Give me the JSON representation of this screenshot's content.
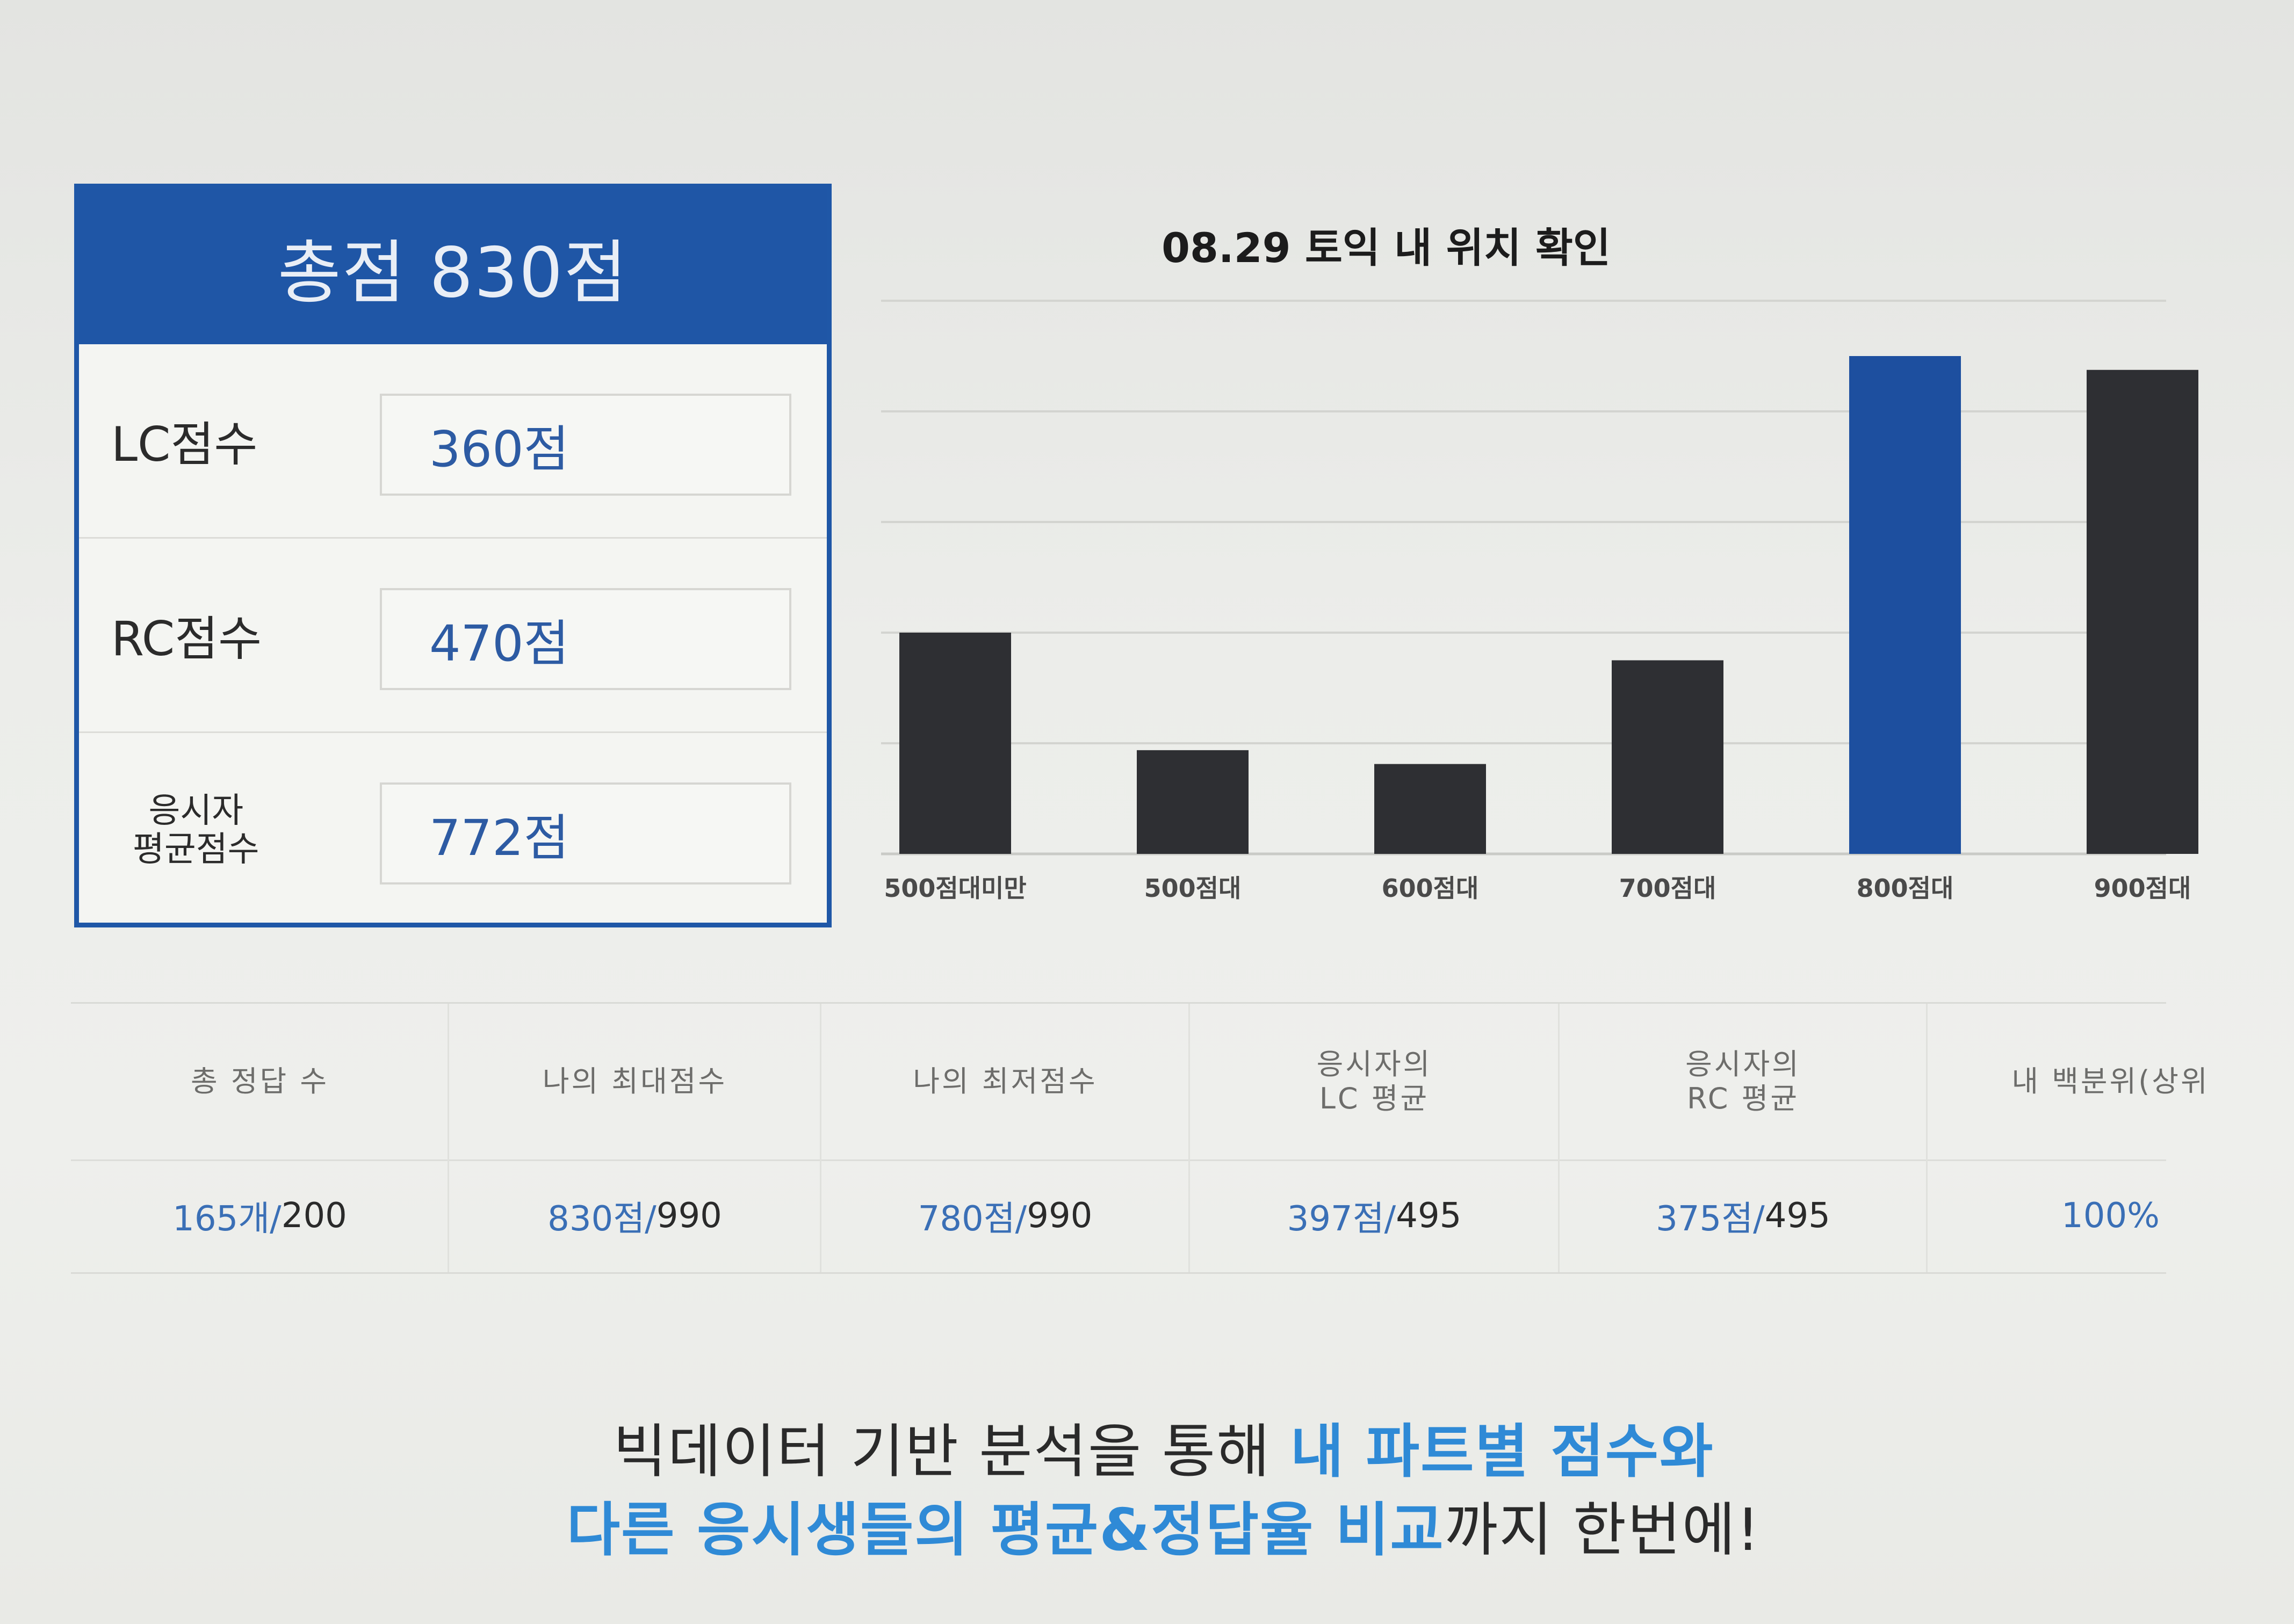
{
  "score_card": {
    "title": "총점 830점",
    "rows": [
      {
        "label": "LC점수",
        "value": "360점"
      },
      {
        "label": "RC점수",
        "value": "470점"
      },
      {
        "label": "응시자\n평균점수",
        "value": "772점"
      }
    ]
  },
  "chart_data": {
    "type": "bar",
    "title": "08.29 토익 내 위치 확인",
    "categories": [
      "500점대미만",
      "500점대",
      "600점대",
      "700점대",
      "800점대",
      "900점대"
    ],
    "values": [
      16,
      7.5,
      6.5,
      14,
      36,
      35
    ],
    "highlight_category": "800점대",
    "colors": {
      "default": "#2e2f33",
      "highlight": "#1d4f9f"
    },
    "ylim": [
      0,
      40
    ],
    "grid": true,
    "xlabel": "",
    "ylabel": ""
  },
  "stats": [
    {
      "header": "총 정답 수",
      "value_a": "165개/",
      "value_b": " 200"
    },
    {
      "header": "나의 최대점수",
      "value_a": "830점/",
      "value_b": " 990"
    },
    {
      "header": "나의 최저점수",
      "value_a": "780점/",
      "value_b": " 990"
    },
    {
      "header": "응시자의\nLC 평균",
      "value_a": "397점/",
      "value_b": " 495"
    },
    {
      "header": "응시자의\nRC 평균",
      "value_a": "375점/",
      "value_b": " 495"
    },
    {
      "header": "내 백분위(상위",
      "value_a": "100%",
      "value_b": ""
    }
  ],
  "promo": {
    "line1_dark": "빅데이터 기반 분석을 통해 ",
    "line1_blue": "내 파트별 점수와",
    "line2_blue": "다른 응시생들의 평균&정답율 비교",
    "line2_dark": "까지 한번에!"
  }
}
